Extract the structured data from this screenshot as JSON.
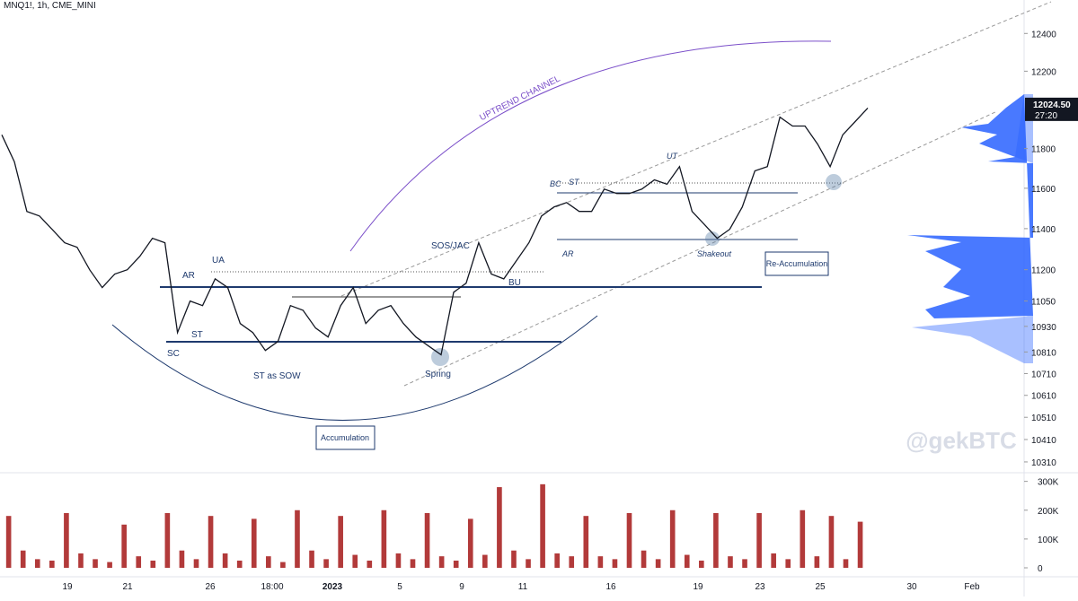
{
  "chart_data": {
    "type": "line",
    "header": "MNQ1!, 1h, CME_MINI",
    "log_scale": true,
    "ylim": [
      10270,
      12580
    ],
    "yticks": [
      12400,
      12200,
      11800,
      11600,
      11400,
      11200,
      11050,
      10930,
      10810,
      10710,
      10610,
      10510,
      10410,
      10310
    ],
    "last_price": {
      "value": 12024.5,
      "label": "12024.50"
    },
    "countdown": "27:20",
    "x_labels": [
      "19",
      "21",
      "26",
      "18:00",
      "2023",
      "5",
      "9",
      "11",
      "16",
      "19",
      "23",
      "25",
      "30",
      "Feb"
    ],
    "series": [
      {
        "name": "MNQ1!",
        "color": "#131722",
        "values": [
          11870,
          11733,
          11485,
          11462,
          11397,
          11331,
          11309,
          11200,
          11114,
          11179,
          11200,
          11265,
          11353,
          11331,
          10901,
          11050,
          11028,
          11156,
          11114,
          10943,
          10901,
          10817,
          10859,
          11028,
          11006,
          10922,
          10880,
          11028,
          11114,
          10943,
          11006,
          11028,
          10943,
          10880,
          10838,
          10797,
          11092,
          11135,
          11331,
          11179,
          11156,
          11243,
          11331,
          11462,
          11507,
          11529,
          11485,
          11485,
          11596,
          11574,
          11574,
          11596,
          11642,
          11620,
          11709,
          11485,
          11419,
          11353,
          11397,
          11507,
          11687,
          11709,
          11961,
          11915,
          11915,
          11823,
          11709,
          11870,
          11938,
          12008
        ]
      }
    ],
    "volume": {
      "color": "#b23a3a",
      "ylim": [
        0,
        330000
      ],
      "yticks": [
        {
          "value": 0,
          "label": "0"
        },
        {
          "value": 100000,
          "label": "100K"
        },
        {
          "value": 200000,
          "label": "200K"
        },
        {
          "value": 300000,
          "label": "300K"
        }
      ],
      "values": [
        180000,
        60000,
        30000,
        25000,
        190000,
        50000,
        30000,
        20000,
        150000,
        40000,
        25000,
        190000,
        60000,
        30000,
        180000,
        50000,
        25000,
        170000,
        40000,
        20000,
        200000,
        60000,
        30000,
        180000,
        45000,
        25000,
        200000,
        50000,
        30000,
        190000,
        40000,
        25000,
        170000,
        45000,
        280000,
        60000,
        30000,
        290000,
        50000,
        40000,
        180000,
        40000,
        30000,
        190000,
        60000,
        30000,
        200000,
        45000,
        25000,
        190000,
        40000,
        30000,
        190000,
        50000,
        30000,
        200000,
        40000,
        180000,
        30000,
        160000
      ]
    },
    "annotations": {
      "channel": "UPTREND CHANNEL",
      "sos": "SOS/JAC",
      "ar": "AR",
      "ua": "UA",
      "st": "ST",
      "sc": "SC",
      "st_sow": "ST as SOW",
      "spring": "Spring",
      "bu": "BU",
      "bc": "BC",
      "st2": "ST",
      "ar2": "AR",
      "ut": "UT",
      "shakeout": "Shakeout",
      "accumulation": "Accumulation",
      "reaccumulation": "Re-Accumulation"
    },
    "watermark": "@gekBTC"
  }
}
